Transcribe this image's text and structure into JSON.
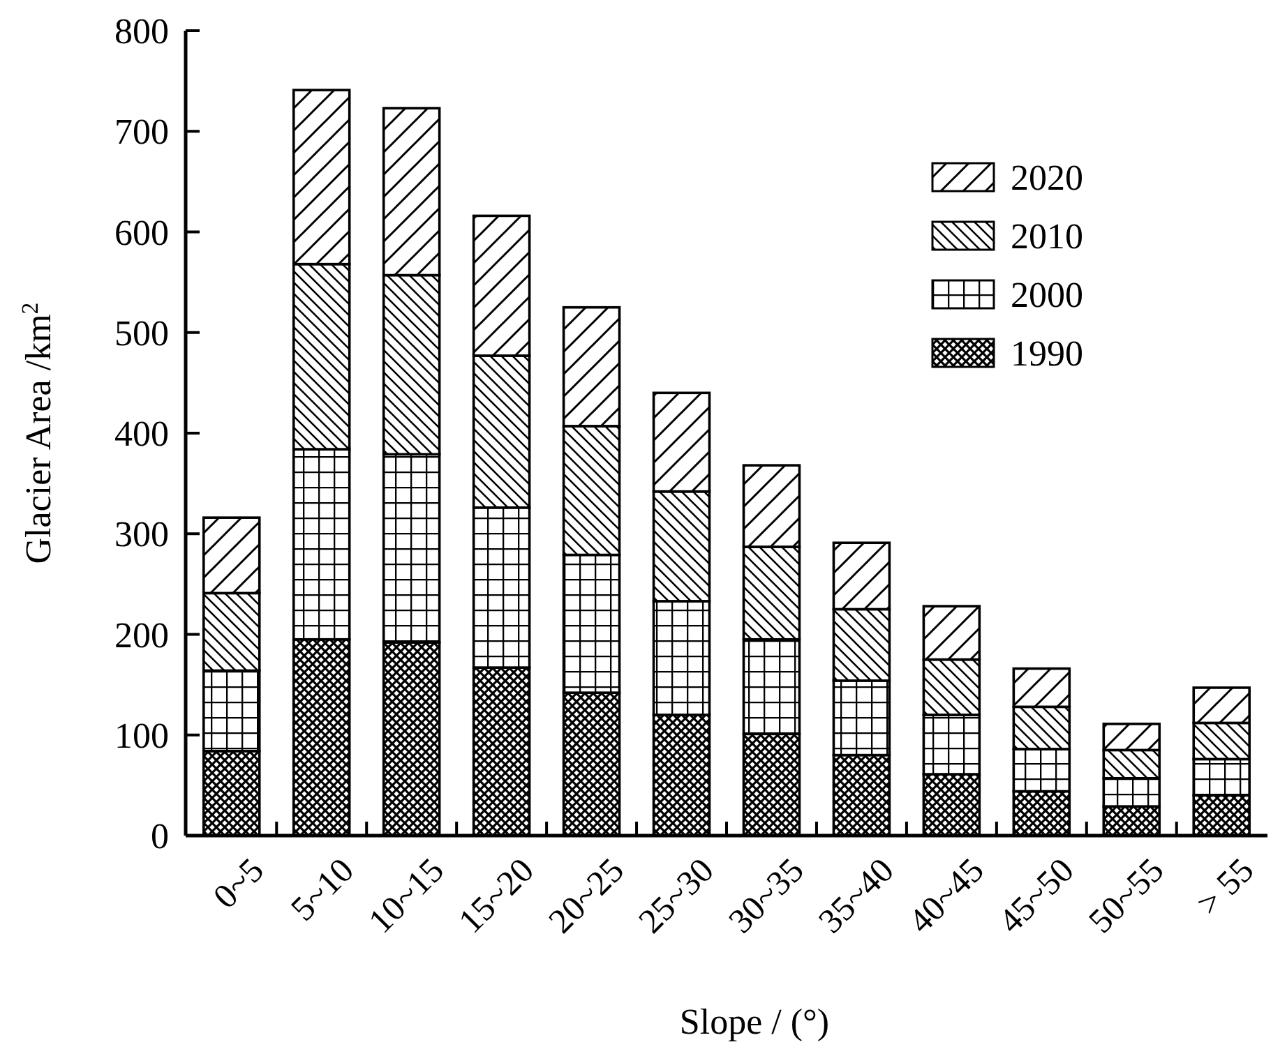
{
  "chart_data": {
    "type": "bar",
    "stacked": true,
    "xlabel": "Slope / (°)",
    "ylabel": "Glacier Area /km$^{2}$",
    "categories": [
      "0~5",
      "5~10",
      "10~15",
      "15~20",
      "20~25",
      "25~30",
      "30~35",
      "35~40",
      "40~45",
      "45~50",
      "50~55",
      "> 55"
    ],
    "series": [
      {
        "name": "1990",
        "color": "#000000",
        "values": [
          84,
          195,
          192,
          167,
          142,
          120,
          101,
          80,
          61,
          44,
          29,
          40
        ]
      },
      {
        "name": "2000",
        "color": "#000000",
        "values": [
          80,
          189,
          187,
          159,
          137,
          113,
          94,
          74,
          59,
          42,
          28,
          36
        ]
      },
      {
        "name": "2010",
        "color": "#000000",
        "values": [
          77,
          184,
          178,
          151,
          128,
          109,
          92,
          71,
          55,
          42,
          28,
          36
        ]
      },
      {
        "name": "2020",
        "color": "#000000",
        "values": [
          75,
          173,
          166,
          139,
          118,
          98,
          81,
          66,
          53,
          38,
          26,
          35
        ]
      }
    ],
    "ylim": [
      0,
      800
    ],
    "yticks": [
      0,
      100,
      200,
      300,
      400,
      500,
      600,
      700,
      800
    ],
    "legend": "top right",
    "grid": false
  }
}
